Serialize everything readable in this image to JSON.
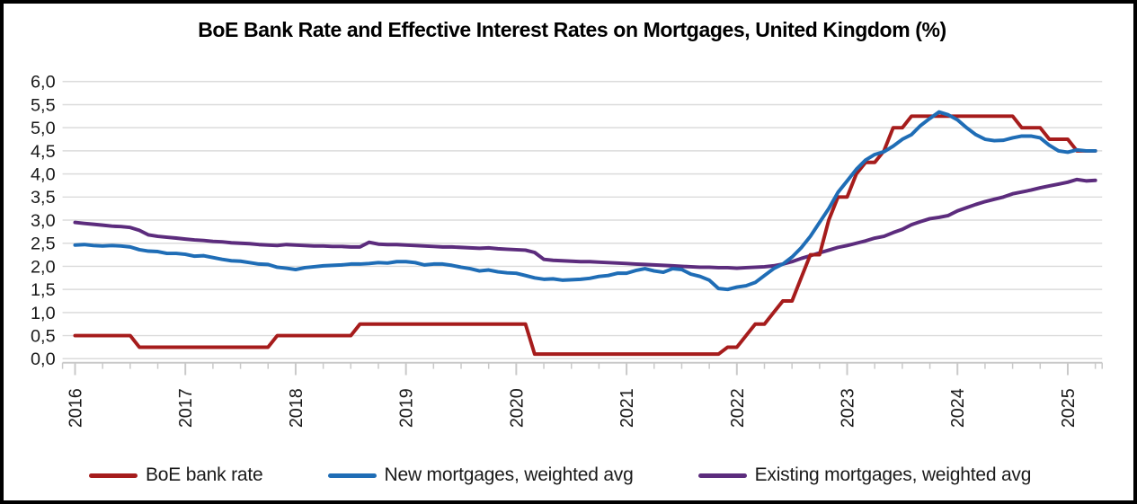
{
  "title": "BoE Bank Rate and Effective Interest Rates on Mortgages, United Kingdom (%)",
  "legend": {
    "position": "bottom",
    "items": [
      {
        "label": "BoE bank rate",
        "color": "#A61C1C"
      },
      {
        "label": "New mortgages, weighted avg",
        "color": "#1F6DB6"
      },
      {
        "label": "Existing mortgages, weighted avg",
        "color": "#5C2C7D"
      }
    ]
  },
  "axes": {
    "y": {
      "tick_labels": [
        "6,0",
        "5,5",
        "5,0",
        "4,5",
        "4,0",
        "3,5",
        "3,0",
        "2,5",
        "2,0",
        "1,5",
        "1,0",
        "0,5",
        "0,0"
      ],
      "decimal_separator": "comma"
    },
    "x": {
      "tick_labels": [
        "2016",
        "2017",
        "2018",
        "2019",
        "2020",
        "2021",
        "2022",
        "2023",
        "2024",
        "2025"
      ],
      "label_rotation_deg": -90,
      "minor_ticks": "quarterly"
    }
  },
  "colors": {
    "gridline": "#DBDBDB",
    "axis": "#C9C9C9",
    "text": "#1a1a1a",
    "background": "#ffffff",
    "border": "#000000"
  },
  "chart_data": {
    "type": "line",
    "title": "BoE Bank Rate and Effective Interest Rates on Mortgages, United Kingdom (%)",
    "xlabel": "",
    "ylabel": "",
    "ylim": [
      0.0,
      6.0
    ],
    "y_tick_step": 0.5,
    "grid": "horizontal",
    "legend_position": "bottom",
    "x_unit": "month",
    "x_start": "2016-01",
    "x_end": "2025-04",
    "x_year_ticks": [
      2016,
      2017,
      2018,
      2019,
      2020,
      2021,
      2022,
      2023,
      2024,
      2025
    ],
    "series": [
      {
        "name": "BoE bank rate",
        "color": "#A61C1C",
        "values": [
          0.5,
          0.5,
          0.5,
          0.5,
          0.5,
          0.5,
          0.5,
          0.25,
          0.25,
          0.25,
          0.25,
          0.25,
          0.25,
          0.25,
          0.25,
          0.25,
          0.25,
          0.25,
          0.25,
          0.25,
          0.25,
          0.25,
          0.5,
          0.5,
          0.5,
          0.5,
          0.5,
          0.5,
          0.5,
          0.5,
          0.5,
          0.75,
          0.75,
          0.75,
          0.75,
          0.75,
          0.75,
          0.75,
          0.75,
          0.75,
          0.75,
          0.75,
          0.75,
          0.75,
          0.75,
          0.75,
          0.75,
          0.75,
          0.75,
          0.75,
          0.1,
          0.1,
          0.1,
          0.1,
          0.1,
          0.1,
          0.1,
          0.1,
          0.1,
          0.1,
          0.1,
          0.1,
          0.1,
          0.1,
          0.1,
          0.1,
          0.1,
          0.1,
          0.1,
          0.1,
          0.1,
          0.25,
          0.25,
          0.5,
          0.75,
          0.75,
          1.0,
          1.25,
          1.25,
          1.75,
          2.25,
          2.25,
          3.0,
          3.5,
          3.5,
          4.0,
          4.25,
          4.25,
          4.5,
          5.0,
          5.0,
          5.25,
          5.25,
          5.25,
          5.25,
          5.25,
          5.25,
          5.25,
          5.25,
          5.25,
          5.25,
          5.25,
          5.25,
          5.0,
          5.0,
          5.0,
          4.75,
          4.75,
          4.75,
          4.5,
          4.5,
          4.5
        ]
      },
      {
        "name": "New mortgages, weighted avg",
        "color": "#1F6DB6",
        "values": [
          2.46,
          2.47,
          2.45,
          2.44,
          2.45,
          2.44,
          2.42,
          2.36,
          2.33,
          2.32,
          2.28,
          2.28,
          2.26,
          2.22,
          2.23,
          2.19,
          2.15,
          2.12,
          2.11,
          2.08,
          2.05,
          2.04,
          1.98,
          1.96,
          1.93,
          1.97,
          1.99,
          2.01,
          2.02,
          2.03,
          2.05,
          2.05,
          2.06,
          2.08,
          2.07,
          2.1,
          2.1,
          2.08,
          2.03,
          2.05,
          2.05,
          2.02,
          1.98,
          1.95,
          1.9,
          1.92,
          1.88,
          1.86,
          1.85,
          1.8,
          1.75,
          1.72,
          1.73,
          1.7,
          1.71,
          1.72,
          1.74,
          1.78,
          1.8,
          1.85,
          1.85,
          1.91,
          1.95,
          1.9,
          1.87,
          1.95,
          1.93,
          1.83,
          1.78,
          1.7,
          1.52,
          1.5,
          1.55,
          1.58,
          1.65,
          1.8,
          1.95,
          2.05,
          2.2,
          2.4,
          2.65,
          2.95,
          3.25,
          3.6,
          3.85,
          4.1,
          4.3,
          4.42,
          4.48,
          4.6,
          4.75,
          4.85,
          5.05,
          5.2,
          5.34,
          5.28,
          5.17,
          5.0,
          4.85,
          4.75,
          4.72,
          4.73,
          4.78,
          4.82,
          4.82,
          4.78,
          4.62,
          4.5,
          4.47,
          4.52,
          4.5,
          4.5
        ]
      },
      {
        "name": "Existing mortgages, weighted avg",
        "color": "#5C2C7D",
        "values": [
          2.95,
          2.93,
          2.91,
          2.89,
          2.87,
          2.86,
          2.84,
          2.78,
          2.68,
          2.65,
          2.63,
          2.61,
          2.59,
          2.57,
          2.56,
          2.54,
          2.53,
          2.51,
          2.5,
          2.49,
          2.47,
          2.46,
          2.45,
          2.47,
          2.46,
          2.45,
          2.44,
          2.44,
          2.43,
          2.43,
          2.42,
          2.42,
          2.52,
          2.48,
          2.47,
          2.47,
          2.46,
          2.45,
          2.44,
          2.43,
          2.42,
          2.42,
          2.41,
          2.4,
          2.39,
          2.4,
          2.38,
          2.37,
          2.36,
          2.35,
          2.3,
          2.15,
          2.13,
          2.12,
          2.11,
          2.1,
          2.1,
          2.09,
          2.08,
          2.07,
          2.06,
          2.05,
          2.04,
          2.03,
          2.02,
          2.01,
          2.0,
          1.99,
          1.98,
          1.98,
          1.97,
          1.97,
          1.96,
          1.97,
          1.98,
          1.99,
          2.01,
          2.05,
          2.1,
          2.17,
          2.23,
          2.29,
          2.35,
          2.41,
          2.45,
          2.5,
          2.55,
          2.61,
          2.65,
          2.73,
          2.8,
          2.9,
          2.97,
          3.03,
          3.06,
          3.1,
          3.2,
          3.27,
          3.34,
          3.4,
          3.45,
          3.5,
          3.57,
          3.61,
          3.65,
          3.7,
          3.74,
          3.78,
          3.82,
          3.88,
          3.85,
          3.86
        ]
      }
    ]
  }
}
